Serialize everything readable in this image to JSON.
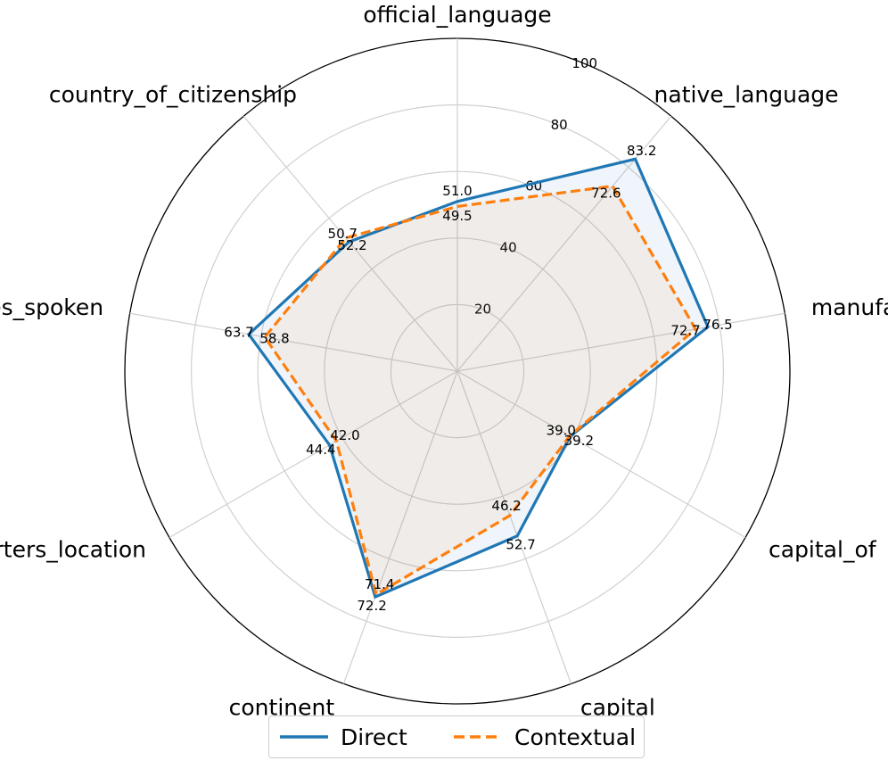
{
  "chart_data": {
    "type": "radar",
    "categories": [
      "official_language",
      "native_language",
      "manufacturer",
      "capital_of",
      "capital",
      "continent",
      "headquarters_location",
      "languages_spoken",
      "country_of_citizenship"
    ],
    "series": [
      {
        "name": "Direct",
        "values": [
          51.0,
          83.2,
          76.5,
          39.2,
          52.7,
          72.2,
          44.4,
          63.7,
          50.7
        ],
        "color": "#1f77b4",
        "style": "solid"
      },
      {
        "name": "Contextual",
        "values": [
          49.5,
          72.6,
          72.7,
          39.0,
          46.2,
          71.4,
          42.0,
          58.8,
          52.2
        ],
        "color": "#ff7f0e",
        "style": "dashed"
      }
    ],
    "r_ticks": [
      20,
      40,
      60,
      80,
      100
    ],
    "rlim": [
      0,
      100
    ],
    "grid": true,
    "legend_position": "bottom-center",
    "value_labels": {
      "Direct": [
        "51.0",
        "83.2",
        "76.5",
        "39.2",
        "52.7",
        "72.2",
        "44.4",
        "63.7",
        "50.7"
      ],
      "Contextual": [
        "49.5",
        "72.6",
        "72.7",
        "39.0",
        "46.2",
        "71.4",
        "42.0",
        "58.8",
        "52.2"
      ]
    }
  }
}
